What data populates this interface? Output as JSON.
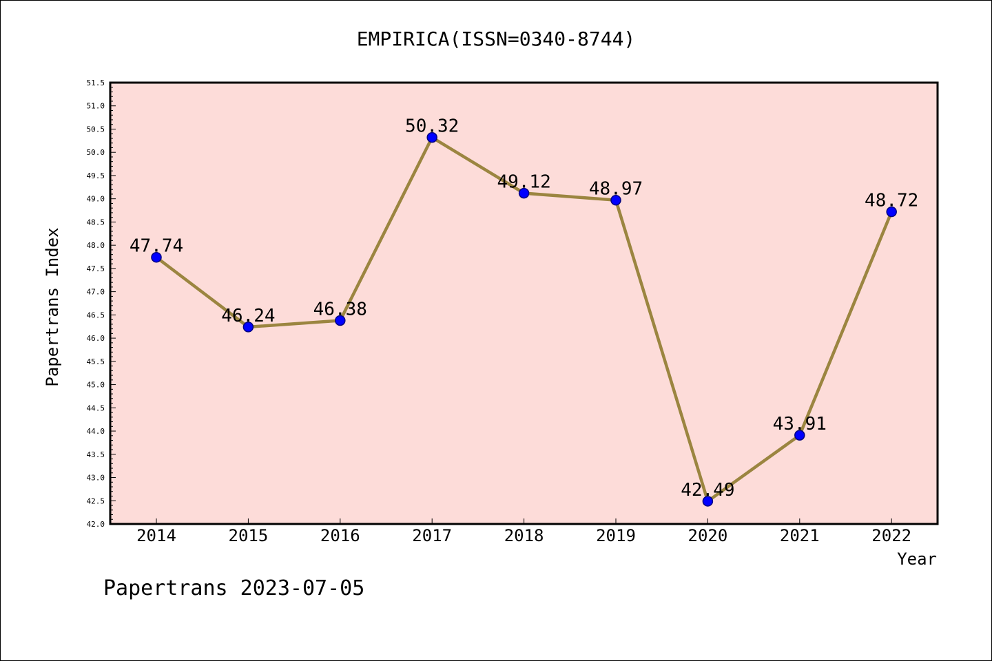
{
  "chart_data": {
    "type": "line",
    "title": "EMPIRICA(ISSN=0340-8744)",
    "xlabel": "Year",
    "ylabel": "Papertrans Index",
    "categories": [
      "2014",
      "2015",
      "2016",
      "2017",
      "2018",
      "2019",
      "2020",
      "2021",
      "2022"
    ],
    "series": [
      {
        "values": [
          47.74,
          46.24,
          46.38,
          50.32,
          49.12,
          48.97,
          42.49,
          43.91,
          48.72
        ],
        "data_labels": [
          "47.74",
          "46.24",
          "46.38",
          "50.32",
          "49.12",
          "48.97",
          "42.49",
          "43.91",
          "48.72"
        ]
      }
    ],
    "ylim": [
      42.0,
      51.5
    ],
    "yticks": [
      "42.0",
      "42.5",
      "43.0",
      "43.5",
      "44.0",
      "44.5",
      "45.0",
      "45.5",
      "46.0",
      "46.5",
      "47.0",
      "47.5",
      "48.0",
      "48.5",
      "49.0",
      "49.5",
      "50.0",
      "50.5",
      "51.0",
      "51.5"
    ],
    "grid": false,
    "colors": {
      "plot_background": "#fddcd9",
      "line": "#9b8540",
      "marker_fill": "#0000ff",
      "marker_edge": "#000080"
    },
    "footnote": "Papertrans 2023-07-05"
  }
}
